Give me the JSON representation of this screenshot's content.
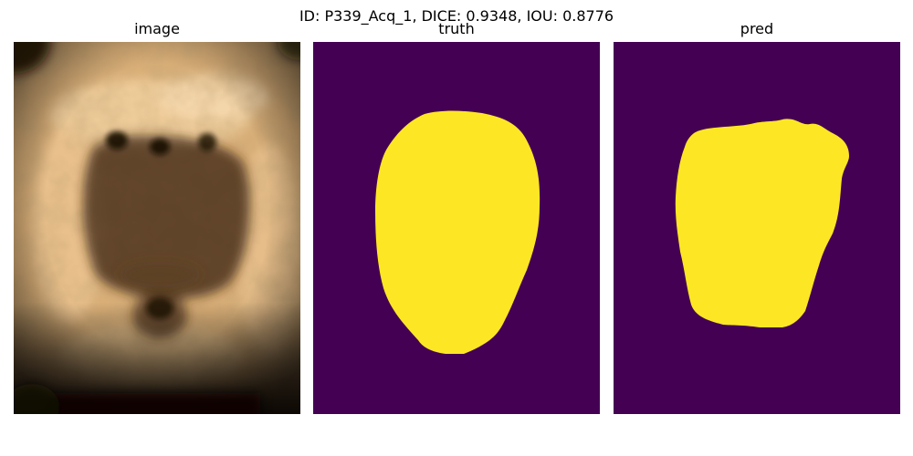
{
  "figure": {
    "suptitle": "ID: P339_Acq_1, DICE: 0.9348, IOU: 0.8776"
  },
  "panels": [
    {
      "title": "image"
    },
    {
      "title": "truth"
    },
    {
      "title": "pred"
    }
  ],
  "colors": {
    "mask_background": "#440154",
    "mask_foreground": "#fde725",
    "ultrasound_base": "#d9ae77",
    "ultrasound_dark": "#2a1a0c"
  }
}
